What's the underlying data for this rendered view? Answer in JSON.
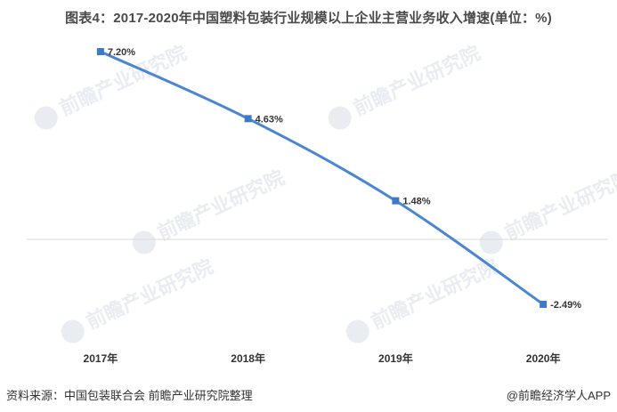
{
  "title": "图表4：2017-2020年中国塑料包装行业规模以上企业主营业务收入增速(单位：%)",
  "watermark_text": "前瞻产业研究院",
  "source": "资料来源：中国包装联合会 前瞻产业研究院整理",
  "brand": "@前瞻经济学人APP",
  "colors": {
    "line": "#4a86d4",
    "marker": "#3f78c6",
    "zero_line": "#d9d9d9",
    "text": "#333333"
  },
  "chart_data": {
    "type": "line",
    "title": "图表4：2017-2020年中国塑料包装行业规模以上企业主营业务收入增速(单位：%)",
    "categories": [
      "2017年",
      "2018年",
      "2019年",
      "2020年"
    ],
    "series": [
      {
        "values": [
          7.2,
          4.63,
          1.48,
          -2.49
        ],
        "labels": [
          "7.20%",
          "4.63%",
          "1.48%",
          "-2.49%"
        ]
      }
    ],
    "ylim": [
      -4.5,
      8.5
    ],
    "grid": false,
    "zero_line": true
  }
}
